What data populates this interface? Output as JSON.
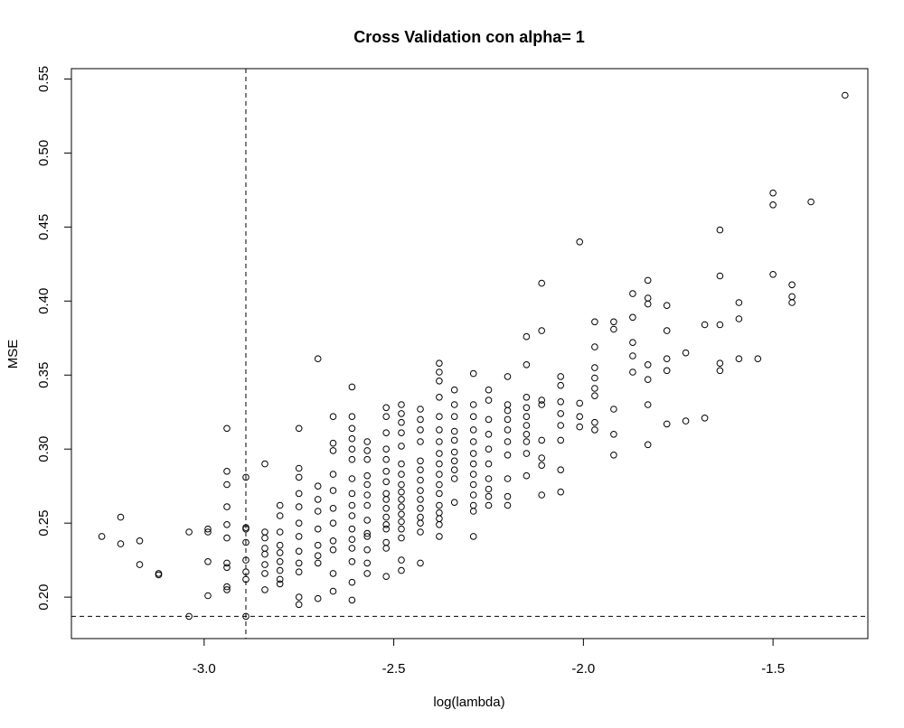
{
  "chart_data": {
    "type": "scatter",
    "title": "Cross Validation con alpha= 1",
    "xlabel": "log(lambda)",
    "ylabel": "MSE",
    "xlim": [
      -3.35,
      -1.25
    ],
    "ylim": [
      0.172,
      0.557
    ],
    "xticks": [
      -3.0,
      -2.5,
      -2.0,
      -1.5
    ],
    "xtick_labels": [
      "-3.0",
      "-2.5",
      "-2.0",
      "-1.5"
    ],
    "yticks": [
      0.2,
      0.25,
      0.3,
      0.35,
      0.4,
      0.45,
      0.5,
      0.55
    ],
    "ytick_labels": [
      "0.20",
      "0.25",
      "0.30",
      "0.35",
      "0.40",
      "0.45",
      "0.50",
      "0.55"
    ],
    "grid": false,
    "reference_lines": {
      "vertical_x": -2.89,
      "horizontal_y": 0.187
    },
    "points": [
      [
        -3.27,
        0.241
      ],
      [
        -3.22,
        0.236
      ],
      [
        -3.22,
        0.254
      ],
      [
        -3.17,
        0.222
      ],
      [
        -3.17,
        0.238
      ],
      [
        -3.12,
        0.215
      ],
      [
        -3.12,
        0.216
      ],
      [
        -3.04,
        0.187
      ],
      [
        -3.04,
        0.244
      ],
      [
        -2.99,
        0.201
      ],
      [
        -2.99,
        0.224
      ],
      [
        -2.99,
        0.246
      ],
      [
        -2.99,
        0.244
      ],
      [
        -2.94,
        0.205
      ],
      [
        -2.94,
        0.207
      ],
      [
        -2.94,
        0.22
      ],
      [
        -2.94,
        0.223
      ],
      [
        -2.94,
        0.24
      ],
      [
        -2.94,
        0.249
      ],
      [
        -2.94,
        0.261
      ],
      [
        -2.94,
        0.276
      ],
      [
        -2.94,
        0.285
      ],
      [
        -2.94,
        0.314
      ],
      [
        -2.89,
        0.187
      ],
      [
        -2.89,
        0.212
      ],
      [
        -2.89,
        0.217
      ],
      [
        -2.89,
        0.225
      ],
      [
        -2.89,
        0.237
      ],
      [
        -2.89,
        0.246
      ],
      [
        -2.89,
        0.247
      ],
      [
        -2.89,
        0.281
      ],
      [
        -2.84,
        0.205
      ],
      [
        -2.84,
        0.216
      ],
      [
        -2.84,
        0.222
      ],
      [
        -2.84,
        0.229
      ],
      [
        -2.84,
        0.233
      ],
      [
        -2.84,
        0.24
      ],
      [
        -2.84,
        0.244
      ],
      [
        -2.84,
        0.29
      ],
      [
        -2.8,
        0.209
      ],
      [
        -2.8,
        0.212
      ],
      [
        -2.8,
        0.218
      ],
      [
        -2.8,
        0.224
      ],
      [
        -2.8,
        0.23
      ],
      [
        -2.8,
        0.235
      ],
      [
        -2.8,
        0.244
      ],
      [
        -2.8,
        0.255
      ],
      [
        -2.8,
        0.262
      ],
      [
        -2.75,
        0.195
      ],
      [
        -2.75,
        0.2
      ],
      [
        -2.75,
        0.217
      ],
      [
        -2.75,
        0.223
      ],
      [
        -2.75,
        0.231
      ],
      [
        -2.75,
        0.241
      ],
      [
        -2.75,
        0.25
      ],
      [
        -2.75,
        0.261
      ],
      [
        -2.75,
        0.27
      ],
      [
        -2.75,
        0.281
      ],
      [
        -2.75,
        0.287
      ],
      [
        -2.75,
        0.314
      ],
      [
        -2.7,
        0.199
      ],
      [
        -2.7,
        0.223
      ],
      [
        -2.7,
        0.228
      ],
      [
        -2.7,
        0.235
      ],
      [
        -2.7,
        0.246
      ],
      [
        -2.7,
        0.258
      ],
      [
        -2.7,
        0.266
      ],
      [
        -2.7,
        0.275
      ],
      [
        -2.7,
        0.361
      ],
      [
        -2.66,
        0.204
      ],
      [
        -2.66,
        0.216
      ],
      [
        -2.66,
        0.232
      ],
      [
        -2.66,
        0.238
      ],
      [
        -2.66,
        0.25
      ],
      [
        -2.66,
        0.26
      ],
      [
        -2.66,
        0.272
      ],
      [
        -2.66,
        0.283
      ],
      [
        -2.66,
        0.299
      ],
      [
        -2.66,
        0.304
      ],
      [
        -2.66,
        0.322
      ],
      [
        -2.61,
        0.198
      ],
      [
        -2.61,
        0.21
      ],
      [
        -2.61,
        0.224
      ],
      [
        -2.61,
        0.233
      ],
      [
        -2.61,
        0.239
      ],
      [
        -2.61,
        0.246
      ],
      [
        -2.61,
        0.255
      ],
      [
        -2.61,
        0.262
      ],
      [
        -2.61,
        0.27
      ],
      [
        -2.61,
        0.28
      ],
      [
        -2.61,
        0.293
      ],
      [
        -2.61,
        0.3
      ],
      [
        -2.61,
        0.307
      ],
      [
        -2.61,
        0.314
      ],
      [
        -2.61,
        0.322
      ],
      [
        -2.61,
        0.342
      ],
      [
        -2.57,
        0.216
      ],
      [
        -2.57,
        0.223
      ],
      [
        -2.57,
        0.232
      ],
      [
        -2.57,
        0.241
      ],
      [
        -2.57,
        0.243
      ],
      [
        -2.57,
        0.252
      ],
      [
        -2.57,
        0.262
      ],
      [
        -2.57,
        0.269
      ],
      [
        -2.57,
        0.276
      ],
      [
        -2.57,
        0.282
      ],
      [
        -2.57,
        0.293
      ],
      [
        -2.57,
        0.299
      ],
      [
        -2.57,
        0.305
      ],
      [
        -2.52,
        0.214
      ],
      [
        -2.52,
        0.233
      ],
      [
        -2.52,
        0.237
      ],
      [
        -2.52,
        0.246
      ],
      [
        -2.52,
        0.249
      ],
      [
        -2.52,
        0.254
      ],
      [
        -2.52,
        0.26
      ],
      [
        -2.52,
        0.266
      ],
      [
        -2.52,
        0.27
      ],
      [
        -2.52,
        0.278
      ],
      [
        -2.52,
        0.285
      ],
      [
        -2.52,
        0.293
      ],
      [
        -2.52,
        0.3
      ],
      [
        -2.52,
        0.311
      ],
      [
        -2.52,
        0.322
      ],
      [
        -2.52,
        0.328
      ],
      [
        -2.48,
        0.218
      ],
      [
        -2.48,
        0.225
      ],
      [
        -2.48,
        0.24
      ],
      [
        -2.48,
        0.246
      ],
      [
        -2.48,
        0.251
      ],
      [
        -2.48,
        0.256
      ],
      [
        -2.48,
        0.261
      ],
      [
        -2.48,
        0.266
      ],
      [
        -2.48,
        0.271
      ],
      [
        -2.48,
        0.276
      ],
      [
        -2.48,
        0.283
      ],
      [
        -2.48,
        0.29
      ],
      [
        -2.48,
        0.302
      ],
      [
        -2.48,
        0.311
      ],
      [
        -2.48,
        0.318
      ],
      [
        -2.48,
        0.324
      ],
      [
        -2.48,
        0.33
      ],
      [
        -2.43,
        0.223
      ],
      [
        -2.43,
        0.244
      ],
      [
        -2.43,
        0.25
      ],
      [
        -2.43,
        0.254
      ],
      [
        -2.43,
        0.26
      ],
      [
        -2.43,
        0.266
      ],
      [
        -2.43,
        0.272
      ],
      [
        -2.43,
        0.279
      ],
      [
        -2.43,
        0.286
      ],
      [
        -2.43,
        0.292
      ],
      [
        -2.43,
        0.305
      ],
      [
        -2.43,
        0.313
      ],
      [
        -2.43,
        0.32
      ],
      [
        -2.43,
        0.327
      ],
      [
        -2.38,
        0.241
      ],
      [
        -2.38,
        0.249
      ],
      [
        -2.38,
        0.253
      ],
      [
        -2.38,
        0.257
      ],
      [
        -2.38,
        0.262
      ],
      [
        -2.38,
        0.27
      ],
      [
        -2.38,
        0.276
      ],
      [
        -2.38,
        0.283
      ],
      [
        -2.38,
        0.29
      ],
      [
        -2.38,
        0.297
      ],
      [
        -2.38,
        0.305
      ],
      [
        -2.38,
        0.313
      ],
      [
        -2.38,
        0.322
      ],
      [
        -2.38,
        0.335
      ],
      [
        -2.38,
        0.346
      ],
      [
        -2.38,
        0.352
      ],
      [
        -2.38,
        0.358
      ],
      [
        -2.34,
        0.264
      ],
      [
        -2.34,
        0.28
      ],
      [
        -2.34,
        0.286
      ],
      [
        -2.34,
        0.292
      ],
      [
        -2.34,
        0.298
      ],
      [
        -2.34,
        0.306
      ],
      [
        -2.34,
        0.312
      ],
      [
        -2.34,
        0.322
      ],
      [
        -2.34,
        0.33
      ],
      [
        -2.34,
        0.34
      ],
      [
        -2.29,
        0.241
      ],
      [
        -2.29,
        0.258
      ],
      [
        -2.29,
        0.262
      ],
      [
        -2.29,
        0.269
      ],
      [
        -2.29,
        0.276
      ],
      [
        -2.29,
        0.283
      ],
      [
        -2.29,
        0.29
      ],
      [
        -2.29,
        0.297
      ],
      [
        -2.29,
        0.305
      ],
      [
        -2.29,
        0.313
      ],
      [
        -2.29,
        0.322
      ],
      [
        -2.29,
        0.33
      ],
      [
        -2.29,
        0.351
      ],
      [
        -2.25,
        0.262
      ],
      [
        -2.25,
        0.268
      ],
      [
        -2.25,
        0.273
      ],
      [
        -2.25,
        0.28
      ],
      [
        -2.25,
        0.29
      ],
      [
        -2.25,
        0.3
      ],
      [
        -2.25,
        0.31
      ],
      [
        -2.25,
        0.32
      ],
      [
        -2.25,
        0.333
      ],
      [
        -2.25,
        0.34
      ],
      [
        -2.2,
        0.262
      ],
      [
        -2.2,
        0.268
      ],
      [
        -2.2,
        0.28
      ],
      [
        -2.2,
        0.296
      ],
      [
        -2.2,
        0.305
      ],
      [
        -2.2,
        0.313
      ],
      [
        -2.2,
        0.32
      ],
      [
        -2.2,
        0.326
      ],
      [
        -2.2,
        0.33
      ],
      [
        -2.2,
        0.349
      ],
      [
        -2.15,
        0.282
      ],
      [
        -2.15,
        0.297
      ],
      [
        -2.15,
        0.305
      ],
      [
        -2.15,
        0.31
      ],
      [
        -2.15,
        0.316
      ],
      [
        -2.15,
        0.322
      ],
      [
        -2.15,
        0.328
      ],
      [
        -2.15,
        0.335
      ],
      [
        -2.15,
        0.357
      ],
      [
        -2.15,
        0.376
      ],
      [
        -2.11,
        0.269
      ],
      [
        -2.11,
        0.289
      ],
      [
        -2.11,
        0.294
      ],
      [
        -2.11,
        0.306
      ],
      [
        -2.11,
        0.33
      ],
      [
        -2.11,
        0.333
      ],
      [
        -2.11,
        0.38
      ],
      [
        -2.11,
        0.412
      ],
      [
        -2.06,
        0.271
      ],
      [
        -2.06,
        0.286
      ],
      [
        -2.06,
        0.306
      ],
      [
        -2.06,
        0.316
      ],
      [
        -2.06,
        0.324
      ],
      [
        -2.06,
        0.332
      ],
      [
        -2.06,
        0.343
      ],
      [
        -2.06,
        0.349
      ],
      [
        -2.01,
        0.315
      ],
      [
        -2.01,
        0.322
      ],
      [
        -2.01,
        0.331
      ],
      [
        -2.01,
        0.44
      ],
      [
        -1.97,
        0.313
      ],
      [
        -1.97,
        0.318
      ],
      [
        -1.97,
        0.336
      ],
      [
        -1.97,
        0.341
      ],
      [
        -1.97,
        0.348
      ],
      [
        -1.97,
        0.355
      ],
      [
        -1.97,
        0.369
      ],
      [
        -1.97,
        0.386
      ],
      [
        -1.92,
        0.296
      ],
      [
        -1.92,
        0.31
      ],
      [
        -1.92,
        0.327
      ],
      [
        -1.92,
        0.381
      ],
      [
        -1.92,
        0.386
      ],
      [
        -1.87,
        0.352
      ],
      [
        -1.87,
        0.363
      ],
      [
        -1.87,
        0.372
      ],
      [
        -1.87,
        0.389
      ],
      [
        -1.87,
        0.405
      ],
      [
        -1.83,
        0.303
      ],
      [
        -1.83,
        0.33
      ],
      [
        -1.83,
        0.347
      ],
      [
        -1.83,
        0.357
      ],
      [
        -1.83,
        0.398
      ],
      [
        -1.83,
        0.402
      ],
      [
        -1.83,
        0.414
      ],
      [
        -1.78,
        0.317
      ],
      [
        -1.78,
        0.353
      ],
      [
        -1.78,
        0.361
      ],
      [
        -1.78,
        0.38
      ],
      [
        -1.78,
        0.397
      ],
      [
        -1.73,
        0.319
      ],
      [
        -1.73,
        0.365
      ],
      [
        -1.68,
        0.321
      ],
      [
        -1.68,
        0.384
      ],
      [
        -1.64,
        0.353
      ],
      [
        -1.64,
        0.358
      ],
      [
        -1.64,
        0.384
      ],
      [
        -1.64,
        0.417
      ],
      [
        -1.64,
        0.448
      ],
      [
        -1.59,
        0.361
      ],
      [
        -1.59,
        0.388
      ],
      [
        -1.59,
        0.399
      ],
      [
        -1.54,
        0.361
      ],
      [
        -1.5,
        0.418
      ],
      [
        -1.5,
        0.465
      ],
      [
        -1.5,
        0.473
      ],
      [
        -1.45,
        0.399
      ],
      [
        -1.45,
        0.403
      ],
      [
        -1.45,
        0.411
      ],
      [
        -1.4,
        0.467
      ],
      [
        -1.31,
        0.539
      ]
    ]
  }
}
